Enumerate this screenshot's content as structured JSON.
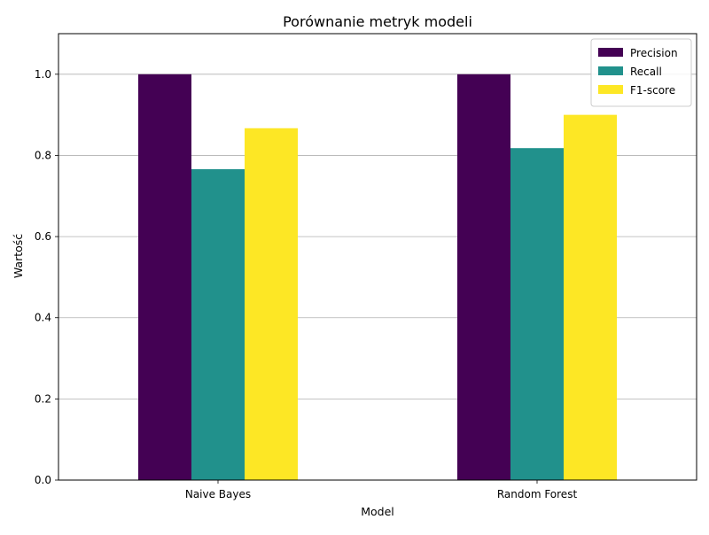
{
  "chart_data": {
    "type": "bar",
    "title": "Porównanie metryk modeli",
    "xlabel": "Model",
    "ylabel": "Wartość",
    "categories": [
      "Naive Bayes",
      "Random Forest"
    ],
    "series": [
      {
        "name": "Precision",
        "color": "#440154",
        "values": [
          1.0,
          1.0
        ]
      },
      {
        "name": "Recall",
        "color": "#21918c",
        "values": [
          0.766,
          0.818
        ]
      },
      {
        "name": "F1-score",
        "color": "#fde725",
        "values": [
          0.867,
          0.9
        ]
      }
    ],
    "ylim": [
      0,
      1.1
    ],
    "yticks": [
      "0.0",
      "0.2",
      "0.4",
      "0.6",
      "0.8",
      "1.0"
    ],
    "grid": "horizontal",
    "legend_position": "top-right"
  }
}
